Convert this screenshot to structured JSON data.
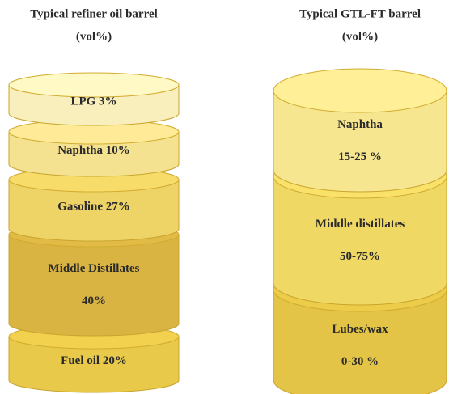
{
  "left_barrel": {
    "title_lines": [
      "Typical refiner oil barrel",
      "(vol%)"
    ],
    "segments": [
      {
        "lines": [
          "LPG 3%"
        ]
      },
      {
        "lines": [
          "Naphtha 10%"
        ]
      },
      {
        "lines": [
          "Gasoline 27%"
        ]
      },
      {
        "lines": [
          "Middle Distillates",
          "40%"
        ]
      },
      {
        "lines": [
          "Fuel oil 20%"
        ]
      }
    ]
  },
  "right_barrel": {
    "title_lines": [
      "Typical GTL-FT barrel",
      "(vol%)"
    ],
    "segments": [
      {
        "lines": [
          "Naphtha",
          "15-25 %"
        ]
      },
      {
        "lines": [
          "Middle distillates",
          "50-75%"
        ]
      },
      {
        "lines": [
          "Lubes/wax",
          "0-30 %"
        ]
      }
    ]
  }
}
